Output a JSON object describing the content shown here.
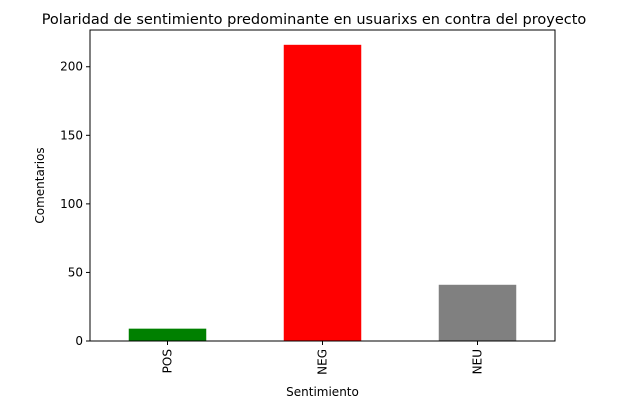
{
  "chart_data": {
    "type": "bar",
    "title": "Polaridad de sentimiento predominante en usuarixs en contra del proyecto",
    "xlabel": "Sentimiento",
    "ylabel": "Comentarios",
    "categories": [
      "POS",
      "NEG",
      "NEU"
    ],
    "values": [
      9,
      216,
      41
    ],
    "colors": [
      "#008000",
      "#ff0000",
      "#808080"
    ],
    "ylim": [
      0,
      226.8
    ],
    "yticks": [
      0,
      50,
      100,
      150,
      200
    ],
    "grid": false,
    "legend": "none"
  }
}
